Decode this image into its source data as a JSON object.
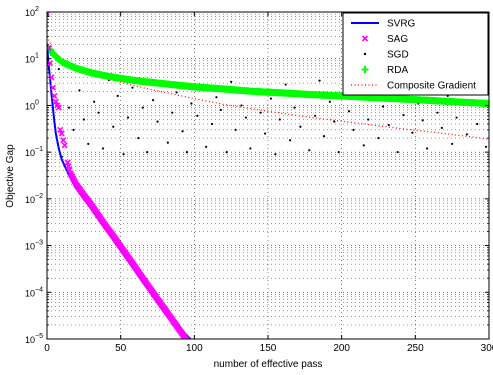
{
  "chart_data": {
    "type": "line",
    "title": "",
    "xlabel": "number of effective pass",
    "ylabel": "Objective Gap",
    "xlim": [
      0,
      300
    ],
    "ylim_exponent": [
      -5,
      2
    ],
    "yscale": "log",
    "grid": true,
    "grid_style": "dotted",
    "legend_placement": "top-right",
    "xticks": [
      0,
      50,
      100,
      150,
      200,
      250,
      300
    ],
    "xtick_labels": [
      "0",
      "50",
      "100",
      "150",
      "200",
      "250",
      "300"
    ],
    "ytick_exponents": [
      -5,
      -4,
      -3,
      -2,
      -1,
      0,
      1,
      2
    ],
    "ytick_labels": [
      "10",
      "10",
      "10",
      "10",
      "10",
      "10",
      "10",
      "10"
    ],
    "ytick_superscripts": [
      "−5",
      "−4",
      "−3",
      "−2",
      "−1",
      "0",
      "1",
      "2"
    ],
    "series": [
      {
        "name": "SVRG",
        "style": "line",
        "color": "#0000ff",
        "points": [
          [
            0,
            20
          ],
          [
            1,
            8
          ],
          [
            2,
            4
          ],
          [
            3,
            1.8
          ],
          [
            4,
            0.9
          ],
          [
            5,
            0.45
          ],
          [
            6,
            0.25
          ],
          [
            8,
            0.12
          ],
          [
            10,
            0.07
          ],
          [
            15,
            0.032
          ],
          [
            20,
            0.017
          ],
          [
            40,
            0.0022
          ],
          [
            60,
            0.00028
          ],
          [
            80,
            3.7e-05
          ],
          [
            98,
            9.5e-06
          ]
        ]
      },
      {
        "name": "SAG",
        "style": "x-marker",
        "color": "#ff00ff",
        "points": [
          [
            0,
            90
          ],
          [
            1,
            17
          ],
          [
            2,
            8
          ],
          [
            3,
            4
          ],
          [
            4,
            2.4
          ],
          [
            5,
            1.6
          ],
          [
            6,
            1.2
          ],
          [
            7,
            1.0
          ],
          [
            8,
            0.9
          ],
          [
            9,
            0.3
          ],
          [
            10,
            0.25
          ],
          [
            11,
            0.18
          ],
          [
            12,
            0.14
          ],
          [
            14,
            0.06
          ],
          [
            16,
            0.035
          ],
          [
            20,
            0.02
          ],
          [
            25,
            0.012
          ],
          [
            30,
            0.0075
          ],
          [
            35,
            0.0044
          ],
          [
            40,
            0.0026
          ],
          [
            45,
            0.0016
          ],
          [
            50,
            0.00095
          ],
          [
            55,
            0.00057
          ],
          [
            60,
            0.00034
          ],
          [
            65,
            0.0002
          ],
          [
            70,
            0.00012
          ],
          [
            75,
            7.2e-05
          ],
          [
            80,
            4.3e-05
          ],
          [
            85,
            2.6e-05
          ],
          [
            90,
            1.55e-05
          ],
          [
            95,
            9.3e-06
          ],
          [
            98,
            7.1e-06
          ]
        ]
      },
      {
        "name": "SGD",
        "style": "dot",
        "color": "#000000",
        "points": [
          [
            3,
            12
          ],
          [
            8,
            6
          ],
          [
            10,
            0.08
          ],
          [
            15,
            0.9
          ],
          [
            18,
            0.3
          ],
          [
            22,
            2.1
          ],
          [
            25,
            0.5
          ],
          [
            28,
            0.15
          ],
          [
            32,
            1.2
          ],
          [
            35,
            0.7
          ],
          [
            38,
            0.12
          ],
          [
            42,
            3.5
          ],
          [
            45,
            0.35
          ],
          [
            48,
            1.6
          ],
          [
            52,
            0.09
          ],
          [
            55,
            0.55
          ],
          [
            58,
            2.4
          ],
          [
            62,
            0.2
          ],
          [
            65,
            0.9
          ],
          [
            68,
            0.1
          ],
          [
            72,
            1.3
          ],
          [
            75,
            0.45
          ],
          [
            78,
            3.0
          ],
          [
            82,
            0.16
          ],
          [
            85,
            0.7
          ],
          [
            88,
            1.9
          ],
          [
            92,
            0.28
          ],
          [
            95,
            0.1
          ],
          [
            98,
            1.1
          ],
          [
            102,
            0.6
          ],
          [
            105,
            2.6
          ],
          [
            108,
            0.13
          ],
          [
            112,
            0.4
          ],
          [
            115,
            1.5
          ],
          [
            118,
            0.8
          ],
          [
            122,
            0.1
          ],
          [
            125,
            3.2
          ],
          [
            128,
            0.3
          ],
          [
            132,
            1.0
          ],
          [
            135,
            0.55
          ],
          [
            138,
            0.12
          ],
          [
            142,
            2.0
          ],
          [
            145,
            0.7
          ],
          [
            148,
            0.25
          ],
          [
            152,
            1.4
          ],
          [
            155,
            0.09
          ],
          [
            158,
            0.5
          ],
          [
            162,
            2.8
          ],
          [
            165,
            0.18
          ],
          [
            168,
            0.9
          ],
          [
            172,
            0.35
          ],
          [
            175,
            1.7
          ],
          [
            178,
            0.11
          ],
          [
            182,
            0.6
          ],
          [
            185,
            3.4
          ],
          [
            188,
            0.22
          ],
          [
            192,
            1.2
          ],
          [
            195,
            0.45
          ],
          [
            198,
            0.1
          ],
          [
            202,
            2.2
          ],
          [
            205,
            0.75
          ],
          [
            208,
            0.3
          ],
          [
            212,
            1.5
          ],
          [
            215,
            0.14
          ],
          [
            218,
            0.5
          ],
          [
            222,
            2.7
          ],
          [
            225,
            0.2
          ],
          [
            228,
            0.95
          ],
          [
            232,
            0.38
          ],
          [
            235,
            1.8
          ],
          [
            238,
            0.1
          ],
          [
            242,
            0.62
          ],
          [
            245,
            3.1
          ],
          [
            248,
            0.26
          ],
          [
            252,
            1.1
          ],
          [
            255,
            0.48
          ],
          [
            258,
            0.12
          ],
          [
            262,
            2.4
          ],
          [
            265,
            0.7
          ],
          [
            268,
            0.33
          ],
          [
            272,
            1.6
          ],
          [
            275,
            0.15
          ],
          [
            278,
            0.55
          ],
          [
            282,
            2.9
          ],
          [
            285,
            0.24
          ],
          [
            288,
            1.0
          ],
          [
            292,
            0.4
          ],
          [
            295,
            1.9
          ],
          [
            298,
            0.13
          ]
        ]
      },
      {
        "name": "RDA",
        "style": "plus-marker",
        "color": "#00ff00",
        "points": [
          [
            0,
            18
          ],
          [
            5,
            12
          ],
          [
            10,
            8.5
          ],
          [
            20,
            6.2
          ],
          [
            30,
            5.0
          ],
          [
            40,
            4.3
          ],
          [
            50,
            3.8
          ],
          [
            60,
            3.4
          ],
          [
            80,
            2.9
          ],
          [
            100,
            2.5
          ],
          [
            120,
            2.25
          ],
          [
            140,
            2.0
          ],
          [
            160,
            1.85
          ],
          [
            180,
            1.7
          ],
          [
            200,
            1.6
          ],
          [
            220,
            1.48
          ],
          [
            240,
            1.38
          ],
          [
            260,
            1.28
          ],
          [
            280,
            1.18
          ],
          [
            300,
            1.1
          ]
        ]
      },
      {
        "name": "Composite Gradient",
        "style": "dotted-line",
        "color": "#ff0000",
        "points": [
          [
            0,
            30
          ],
          [
            5,
            14
          ],
          [
            10,
            9
          ],
          [
            20,
            6
          ],
          [
            40,
            3.8
          ],
          [
            60,
            2.6
          ],
          [
            80,
            1.9
          ],
          [
            100,
            1.4
          ],
          [
            120,
            1.05
          ],
          [
            150,
            0.75
          ],
          [
            180,
            0.55
          ],
          [
            210,
            0.42
          ],
          [
            240,
            0.32
          ],
          [
            270,
            0.25
          ],
          [
            300,
            0.19
          ]
        ]
      }
    ]
  }
}
